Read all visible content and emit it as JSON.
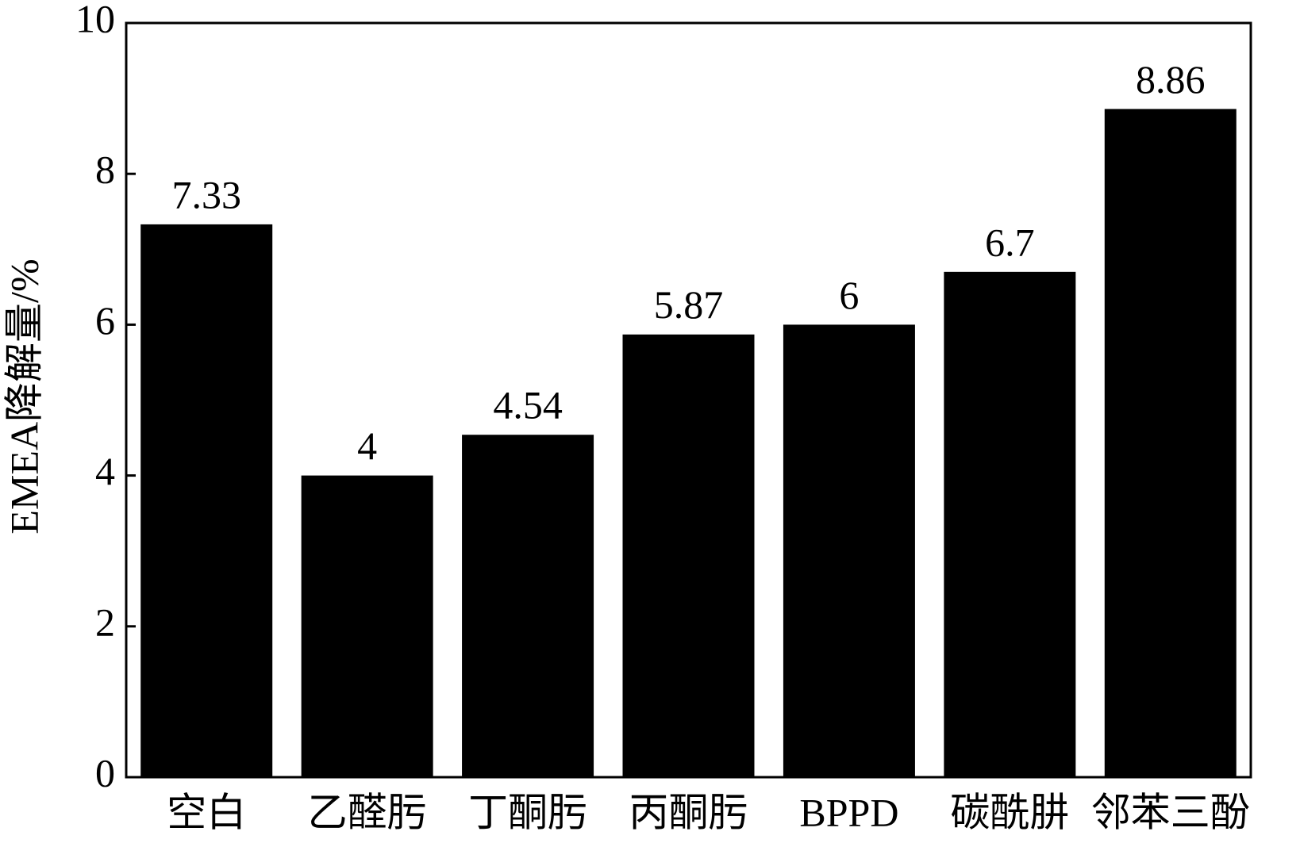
{
  "chart_data": {
    "type": "bar",
    "y_label": "EMEA降解量/%",
    "categories": [
      "空白",
      "乙醛肟",
      "丁酮肟",
      "丙酮肟",
      "BPPD",
      "碳酰肼",
      "邻苯三酚"
    ],
    "values": [
      7.33,
      4,
      4.54,
      5.87,
      6,
      6.7,
      8.86
    ],
    "color": "#000000",
    "ylim": [
      0,
      10
    ],
    "yticks": [
      0,
      2,
      4,
      6,
      8,
      10
    ],
    "grid": false
  }
}
